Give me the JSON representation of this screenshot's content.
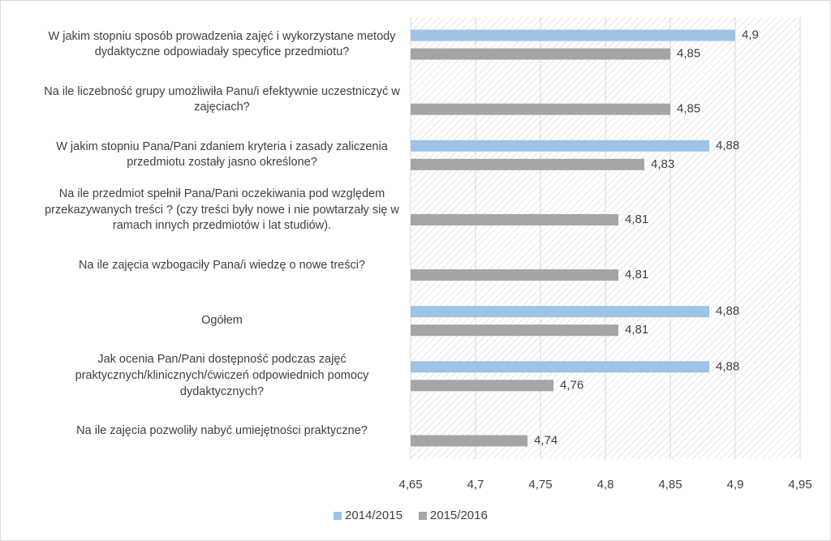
{
  "chart_data": {
    "type": "bar",
    "orientation": "horizontal",
    "categories": [
      "W jakim stopniu sposób prowadzenia zajęć i wykorzystane metody dydaktyczne odpowiadały specyfice przedmiotu?",
      "Na ile liczebność grupy umożliwiła Panu/i efektywnie uczestniczyć w zajęciach?",
      "W jakim stopniu Pana/Pani zdaniem kryteria i zasady zaliczenia przedmiotu zostały jasno określone?",
      "Na ile przedmiot spełnił Pana/Pani oczekiwania pod względem przekazywanych treści ? (czy treści były nowe i nie powtarzały się w ramach innych przedmiotów i lat studiów).",
      "Na ile zajęcia wzbogaciły Pana/i wiedzę o nowe treści?",
      "Ogółem",
      "Jak ocenia Pan/Pani dostępność podczas zajęć praktycznych/klinicznych/ćwiczeń odpowiednich pomocy dydaktycznych?",
      "Na ile zajęcia pozwoliły nabyć umiejętności praktyczne?"
    ],
    "series": [
      {
        "name": "2014/2015",
        "color": "#9dc3e6",
        "values": [
          4.9,
          null,
          4.88,
          null,
          null,
          4.88,
          4.88,
          null
        ],
        "value_labels": [
          "4,9",
          null,
          "4,88",
          null,
          null,
          "4,88",
          "4,88",
          null
        ]
      },
      {
        "name": "2015/2016",
        "color": "#a5a5a5",
        "values": [
          4.85,
          4.85,
          4.83,
          4.81,
          4.81,
          4.81,
          4.76,
          4.74
        ],
        "value_labels": [
          "4,85",
          "4,85",
          "4,83",
          "4,81",
          "4,81",
          "4,81",
          "4,76",
          "4,74"
        ]
      }
    ],
    "xlim": [
      4.65,
      4.95
    ],
    "xticks": [
      {
        "value": 4.65,
        "label": "4,65"
      },
      {
        "value": 4.7,
        "label": "4,7"
      },
      {
        "value": 4.75,
        "label": "4,75"
      },
      {
        "value": 4.8,
        "label": "4,8"
      },
      {
        "value": 4.85,
        "label": "4,85"
      },
      {
        "value": 4.9,
        "label": "4,9"
      },
      {
        "value": 4.95,
        "label": "4,95"
      }
    ],
    "grid": true,
    "legend": "bottom"
  }
}
